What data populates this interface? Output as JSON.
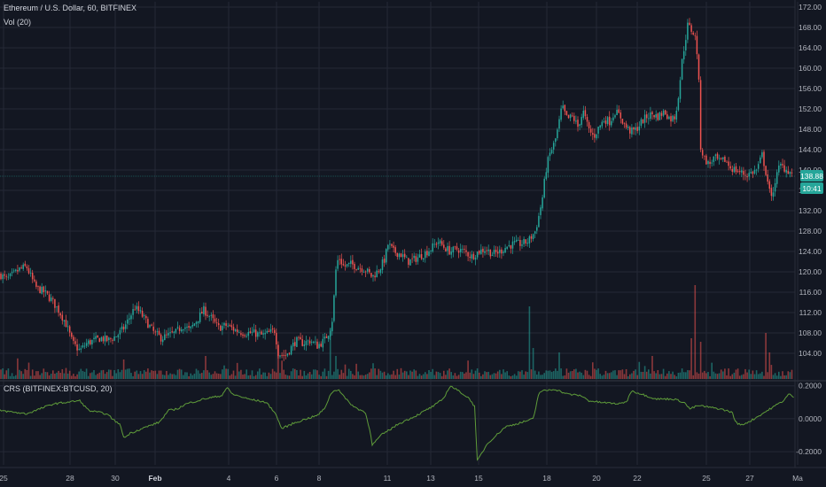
{
  "header": {
    "symbol_line": "Ethereum / U.S. Dollar, 60, BITFINEX",
    "volume_label": "Vol (20)",
    "indicator_label": "CRS (BITFINEX:BTCUSD, 20)"
  },
  "colors": {
    "background": "#131722",
    "grid": "#242836",
    "axis_text": "#b2b5be",
    "up": "#26a69a",
    "down": "#ef5350",
    "crs_line": "#5f9c3a",
    "price_badge": "#26a69a"
  },
  "price_badge": {
    "price": "138.88",
    "countdown": "10:41"
  },
  "chart_data": [
    {
      "type": "candlestick",
      "title": "Ethereum / U.S. Dollar, 60, BITFINEX",
      "ylim": [
        100,
        172
      ],
      "y_ticks": [
        "104.00",
        "108.00",
        "112.00",
        "116.00",
        "120.00",
        "124.00",
        "128.00",
        "132.00",
        "136.00",
        "140.00",
        "144.00",
        "148.00",
        "152.00",
        "156.00",
        "160.00",
        "164.00",
        "168.00",
        "172.00"
      ],
      "x_ticks": [
        "25",
        "28",
        "30",
        "Feb",
        "4",
        "6",
        "8",
        "11",
        "13",
        "15",
        "18",
        "20",
        "22",
        "25",
        "27",
        "Ma"
      ],
      "approx_close_path": [
        [
          0,
          119.5
        ],
        [
          8,
          118.5
        ],
        [
          22,
          120.5
        ],
        [
          30,
          121.0
        ],
        [
          40,
          117.0
        ],
        [
          50,
          116.0
        ],
        [
          58,
          114.5
        ],
        [
          66,
          112.5
        ],
        [
          74,
          110.0
        ],
        [
          82,
          106.0
        ],
        [
          90,
          104.5
        ],
        [
          98,
          106.0
        ],
        [
          106,
          106.5
        ],
        [
          114,
          107.0
        ],
        [
          122,
          106.5
        ],
        [
          132,
          107.5
        ],
        [
          140,
          109.0
        ],
        [
          146,
          111.0
        ],
        [
          152,
          113.0
        ],
        [
          158,
          112.0
        ],
        [
          166,
          110.0
        ],
        [
          174,
          108.0
        ],
        [
          182,
          107.0
        ],
        [
          190,
          107.5
        ],
        [
          198,
          108.0
        ],
        [
          206,
          109.5
        ],
        [
          214,
          108.5
        ],
        [
          222,
          110.5
        ],
        [
          230,
          112.5
        ],
        [
          238,
          111.0
        ],
        [
          246,
          109.0
        ],
        [
          256,
          109.5
        ],
        [
          266,
          108.5
        ],
        [
          276,
          108.0
        ],
        [
          286,
          108.0
        ],
        [
          296,
          107.5
        ],
        [
          304,
          108.0
        ],
        [
          310,
          108.5
        ],
        [
          314,
          104.0
        ],
        [
          322,
          103.5
        ],
        [
          328,
          105.0
        ],
        [
          334,
          106.5
        ],
        [
          342,
          106.0
        ],
        [
          350,
          106.5
        ],
        [
          358,
          105.5
        ],
        [
          366,
          106.5
        ],
        [
          372,
          108.5
        ],
        [
          376,
          111.5
        ],
        [
          378,
          119.5
        ],
        [
          382,
          123.0
        ],
        [
          388,
          121.0
        ],
        [
          396,
          121.5
        ],
        [
          404,
          121.0
        ],
        [
          412,
          120.5
        ],
        [
          420,
          119.0
        ],
        [
          428,
          120.5
        ],
        [
          434,
          122.5
        ],
        [
          438,
          125.5
        ],
        [
          444,
          124.0
        ],
        [
          452,
          123.5
        ],
        [
          460,
          122.0
        ],
        [
          468,
          122.5
        ],
        [
          478,
          123.5
        ],
        [
          486,
          124.5
        ],
        [
          494,
          126.0
        ],
        [
          500,
          125.0
        ],
        [
          508,
          124.0
        ],
        [
          516,
          124.5
        ],
        [
          524,
          124.0
        ],
        [
          532,
          123.0
        ],
        [
          540,
          124.0
        ],
        [
          548,
          124.5
        ],
        [
          556,
          123.5
        ],
        [
          564,
          124.0
        ],
        [
          572,
          125.0
        ],
        [
          580,
          125.5
        ],
        [
          588,
          125.5
        ],
        [
          596,
          126.0
        ],
        [
          604,
          128.0
        ],
        [
          608,
          131.0
        ],
        [
          612,
          134.5
        ],
        [
          616,
          140.0
        ],
        [
          620,
          143.0
        ],
        [
          626,
          145.5
        ],
        [
          630,
          148.5
        ],
        [
          634,
          152.5
        ],
        [
          640,
          150.0
        ],
        [
          646,
          150.5
        ],
        [
          652,
          148.5
        ],
        [
          658,
          151.5
        ],
        [
          664,
          148.0
        ],
        [
          670,
          146.5
        ],
        [
          676,
          148.5
        ],
        [
          682,
          150.0
        ],
        [
          688,
          149.5
        ],
        [
          694,
          151.5
        ],
        [
          700,
          150.5
        ],
        [
          706,
          148.5
        ],
        [
          712,
          147.5
        ],
        [
          718,
          148.0
        ],
        [
          724,
          149.5
        ],
        [
          730,
          150.5
        ],
        [
          736,
          151.0
        ],
        [
          742,
          150.5
        ],
        [
          750,
          151.5
        ],
        [
          756,
          150.0
        ],
        [
          762,
          150.5
        ],
        [
          766,
          155.5
        ],
        [
          770,
          162.0
        ],
        [
          776,
          168.5
        ],
        [
          780,
          167.5
        ],
        [
          784,
          166.5
        ],
        [
          788,
          161.0
        ],
        [
          790,
          145.0
        ],
        [
          794,
          142.5
        ],
        [
          800,
          141.0
        ],
        [
          806,
          142.5
        ],
        [
          812,
          141.5
        ],
        [
          818,
          142.0
        ],
        [
          824,
          140.5
        ],
        [
          830,
          140.0
        ],
        [
          836,
          139.5
        ],
        [
          842,
          139.0
        ],
        [
          848,
          139.5
        ],
        [
          854,
          140.0
        ],
        [
          860,
          143.0
        ],
        [
          866,
          138.0
        ],
        [
          870,
          134.0
        ],
        [
          874,
          137.5
        ],
        [
          880,
          141.0
        ],
        [
          888,
          140.0
        ],
        [
          896,
          139.0
        ]
      ]
    },
    {
      "type": "bar",
      "title": "Vol (20)",
      "note": "hourly volume histogram, spikes near Feb 8, Feb 18, Feb 24"
    },
    {
      "type": "line",
      "title": "CRS (BITFINEX:BTCUSD, 20)",
      "ylim": [
        -0.28,
        0.22
      ],
      "y_ticks": [
        "0.2000",
        "0.0000",
        "-0.2000"
      ],
      "approx_path": [
        [
          0,
          0.05
        ],
        [
          30,
          0.03
        ],
        [
          60,
          0.09
        ],
        [
          90,
          0.11
        ],
        [
          100,
          0.05
        ],
        [
          120,
          0.03
        ],
        [
          136,
          -0.04
        ],
        [
          140,
          -0.12
        ],
        [
          146,
          -0.09
        ],
        [
          160,
          -0.06
        ],
        [
          180,
          -0.02
        ],
        [
          190,
          0.05
        ],
        [
          200,
          0.06
        ],
        [
          210,
          0.09
        ],
        [
          230,
          0.12
        ],
        [
          250,
          0.14
        ],
        [
          256,
          0.19
        ],
        [
          262,
          0.15
        ],
        [
          280,
          0.12
        ],
        [
          300,
          0.1
        ],
        [
          310,
          0.04
        ],
        [
          318,
          -0.06
        ],
        [
          330,
          -0.03
        ],
        [
          346,
          0.0
        ],
        [
          358,
          0.02
        ],
        [
          366,
          0.06
        ],
        [
          374,
          0.16
        ],
        [
          382,
          0.18
        ],
        [
          390,
          0.12
        ],
        [
          400,
          0.07
        ],
        [
          412,
          0.04
        ],
        [
          418,
          -0.08
        ],
        [
          420,
          -0.16
        ],
        [
          430,
          -0.1
        ],
        [
          450,
          -0.03
        ],
        [
          470,
          0.02
        ],
        [
          490,
          0.08
        ],
        [
          500,
          0.12
        ],
        [
          508,
          0.2
        ],
        [
          520,
          0.16
        ],
        [
          530,
          0.12
        ],
        [
          536,
          0.07
        ],
        [
          538,
          -0.26
        ],
        [
          550,
          -0.15
        ],
        [
          570,
          -0.05
        ],
        [
          590,
          -0.02
        ],
        [
          602,
          0.0
        ],
        [
          608,
          0.16
        ],
        [
          614,
          0.17
        ],
        [
          626,
          0.18
        ],
        [
          640,
          0.15
        ],
        [
          656,
          0.14
        ],
        [
          664,
          0.11
        ],
        [
          676,
          0.1
        ],
        [
          700,
          0.09
        ],
        [
          708,
          0.11
        ],
        [
          712,
          0.17
        ],
        [
          724,
          0.15
        ],
        [
          740,
          0.12
        ],
        [
          760,
          0.12
        ],
        [
          772,
          0.1
        ],
        [
          778,
          0.06
        ],
        [
          788,
          0.08
        ],
        [
          800,
          0.07
        ],
        [
          812,
          0.06
        ],
        [
          826,
          0.04
        ],
        [
          830,
          -0.02
        ],
        [
          836,
          -0.04
        ],
        [
          848,
          -0.01
        ],
        [
          860,
          0.03
        ],
        [
          872,
          0.07
        ],
        [
          884,
          0.11
        ],
        [
          890,
          0.15
        ],
        [
          896,
          0.13
        ]
      ]
    }
  ]
}
